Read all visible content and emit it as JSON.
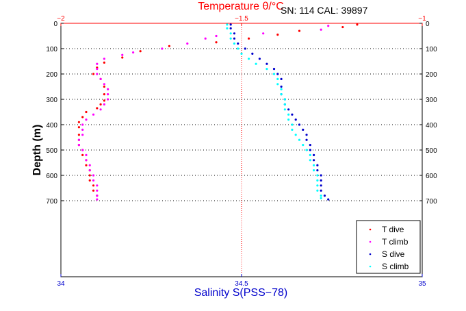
{
  "chart_data": {
    "type": "scatter",
    "title": "Temperature θ/°C",
    "top_axis": {
      "label": "Temperature θ/°C",
      "range": [
        -2,
        -1
      ],
      "ticks": [
        "-2",
        "-1.5",
        "-1"
      ],
      "color": "#ff0000"
    },
    "bottom_axis": {
      "label": "Salinity S(PSS−78)",
      "range": [
        34,
        35
      ],
      "ticks": [
        "34",
        "34.5",
        "35"
      ],
      "color": "#0000cc"
    },
    "y_axis": {
      "label": "Depth (m)",
      "range": [
        0,
        1000
      ],
      "reversed": true,
      "ticks": [
        "0",
        "100",
        "200",
        "300",
        "400",
        "500",
        "600",
        "700"
      ]
    },
    "annotation": "SN: 114  CAL: 39897",
    "grid": "dotted horizontal at each depth tick; dotted vertical at center",
    "legend_position": "bottom-right",
    "series": [
      {
        "name": "T dive",
        "axis": "temperature",
        "color": "#ff0000",
        "points": [
          [
            -1.18,
            5
          ],
          [
            -1.22,
            15
          ],
          [
            -1.34,
            30
          ],
          [
            -1.4,
            45
          ],
          [
            -1.48,
            60
          ],
          [
            -1.57,
            75
          ],
          [
            -1.7,
            90
          ],
          [
            -1.78,
            110
          ],
          [
            -1.83,
            135
          ],
          [
            -1.88,
            155
          ],
          [
            -1.9,
            175
          ],
          [
            -1.91,
            200
          ],
          [
            -1.89,
            220
          ],
          [
            -1.88,
            250
          ],
          [
            -1.88,
            280
          ],
          [
            -1.88,
            305
          ],
          [
            -1.89,
            320
          ],
          [
            -1.9,
            335
          ],
          [
            -1.93,
            350
          ],
          [
            -1.94,
            370
          ],
          [
            -1.95,
            390
          ],
          [
            -1.95,
            410
          ],
          [
            -1.95,
            440
          ],
          [
            -1.95,
            460
          ],
          [
            -1.95,
            480
          ],
          [
            -1.94,
            500
          ],
          [
            -1.94,
            520
          ],
          [
            -1.93,
            540
          ],
          [
            -1.93,
            560
          ],
          [
            -1.92,
            580
          ],
          [
            -1.92,
            600
          ],
          [
            -1.92,
            620
          ],
          [
            -1.91,
            640
          ],
          [
            -1.91,
            660
          ],
          [
            -1.9,
            680
          ]
        ]
      },
      {
        "name": "T climb",
        "axis": "temperature",
        "color": "#ff00ff",
        "points": [
          [
            -1.26,
            10
          ],
          [
            -1.28,
            25
          ],
          [
            -1.44,
            40
          ],
          [
            -1.57,
            50
          ],
          [
            -1.6,
            60
          ],
          [
            -1.65,
            80
          ],
          [
            -1.72,
            100
          ],
          [
            -1.8,
            115
          ],
          [
            -1.83,
            125
          ],
          [
            -1.88,
            140
          ],
          [
            -1.9,
            160
          ],
          [
            -1.9,
            180
          ],
          [
            -1.9,
            200
          ],
          [
            -1.89,
            220
          ],
          [
            -1.88,
            240
          ],
          [
            -1.87,
            260
          ],
          [
            -1.87,
            280
          ],
          [
            -1.87,
            300
          ],
          [
            -1.88,
            320
          ],
          [
            -1.89,
            340
          ],
          [
            -1.91,
            360
          ],
          [
            -1.93,
            380
          ],
          [
            -1.94,
            400
          ],
          [
            -1.94,
            420
          ],
          [
            -1.94,
            440
          ],
          [
            -1.95,
            460
          ],
          [
            -1.95,
            480
          ],
          [
            -1.94,
            500
          ],
          [
            -1.93,
            520
          ],
          [
            -1.93,
            540
          ],
          [
            -1.92,
            560
          ],
          [
            -1.92,
            580
          ],
          [
            -1.91,
            600
          ],
          [
            -1.91,
            620
          ],
          [
            -1.9,
            640
          ],
          [
            -1.9,
            660
          ],
          [
            -1.9,
            680
          ],
          [
            -1.9,
            695
          ]
        ]
      },
      {
        "name": "S dive",
        "axis": "salinity",
        "color": "#0000cc",
        "points": [
          [
            34.47,
            5
          ],
          [
            34.47,
            20
          ],
          [
            34.48,
            40
          ],
          [
            34.48,
            60
          ],
          [
            34.49,
            80
          ],
          [
            34.51,
            100
          ],
          [
            34.53,
            120
          ],
          [
            34.55,
            140
          ],
          [
            34.57,
            160
          ],
          [
            34.59,
            180
          ],
          [
            34.6,
            200
          ],
          [
            34.61,
            220
          ],
          [
            34.61,
            250
          ],
          [
            34.61,
            280
          ],
          [
            34.62,
            300
          ],
          [
            34.62,
            320
          ],
          [
            34.63,
            340
          ],
          [
            34.64,
            360
          ],
          [
            34.65,
            380
          ],
          [
            34.66,
            400
          ],
          [
            34.67,
            420
          ],
          [
            34.68,
            440
          ],
          [
            34.68,
            460
          ],
          [
            34.69,
            480
          ],
          [
            34.69,
            500
          ],
          [
            34.7,
            520
          ],
          [
            34.7,
            540
          ],
          [
            34.71,
            560
          ],
          [
            34.71,
            580
          ],
          [
            34.72,
            600
          ],
          [
            34.72,
            620
          ],
          [
            34.72,
            640
          ],
          [
            34.72,
            660
          ],
          [
            34.73,
            680
          ],
          [
            34.74,
            695
          ]
        ]
      },
      {
        "name": "S climb",
        "axis": "salinity",
        "color": "#00ffff",
        "points": [
          [
            34.46,
            5
          ],
          [
            34.46,
            20
          ],
          [
            34.47,
            40
          ],
          [
            34.47,
            60
          ],
          [
            34.48,
            80
          ],
          [
            34.49,
            100
          ],
          [
            34.5,
            120
          ],
          [
            34.52,
            140
          ],
          [
            34.54,
            160
          ],
          [
            34.57,
            180
          ],
          [
            34.59,
            200
          ],
          [
            34.6,
            220
          ],
          [
            34.6,
            240
          ],
          [
            34.61,
            260
          ],
          [
            34.61,
            280
          ],
          [
            34.62,
            300
          ],
          [
            34.62,
            320
          ],
          [
            34.62,
            340
          ],
          [
            34.63,
            360
          ],
          [
            34.63,
            380
          ],
          [
            34.64,
            400
          ],
          [
            34.64,
            420
          ],
          [
            34.65,
            440
          ],
          [
            34.66,
            460
          ],
          [
            34.67,
            480
          ],
          [
            34.68,
            500
          ],
          [
            34.69,
            520
          ],
          [
            34.69,
            540
          ],
          [
            34.7,
            560
          ],
          [
            34.7,
            580
          ],
          [
            34.71,
            600
          ],
          [
            34.71,
            620
          ],
          [
            34.71,
            640
          ],
          [
            34.71,
            660
          ],
          [
            34.72,
            680
          ],
          [
            34.72,
            690
          ]
        ]
      }
    ]
  }
}
